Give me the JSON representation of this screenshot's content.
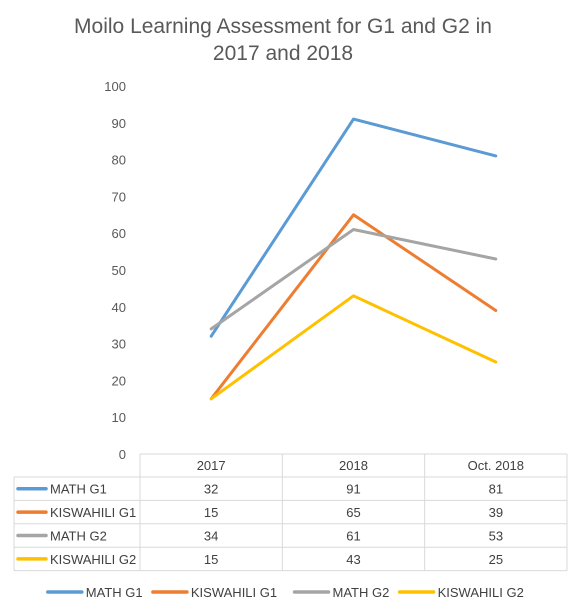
{
  "chart_data": {
    "type": "line",
    "title_lines": [
      "Moilo Learning Assessment for G1 and G2 in",
      "2017 and 2018"
    ],
    "categories": [
      "2017",
      "2018",
      "Oct. 2018"
    ],
    "ylim": [
      0,
      100
    ],
    "yticks": [
      0,
      10,
      20,
      30,
      40,
      50,
      60,
      70,
      80,
      90,
      100
    ],
    "grid": false,
    "legend_position": "bottom",
    "data_table": true,
    "series": [
      {
        "name": "MATH G1",
        "values": [
          32,
          91,
          81
        ],
        "color": "#5B9BD5"
      },
      {
        "name": "KISWAHILI G1",
        "values": [
          15,
          65,
          39
        ],
        "color": "#ED7D31"
      },
      {
        "name": "MATH G2",
        "values": [
          34,
          61,
          53
        ],
        "color": "#A5A5A5"
      },
      {
        "name": "KISWAHILI G2",
        "values": [
          15,
          43,
          25
        ],
        "color": "#FFC000"
      }
    ]
  }
}
